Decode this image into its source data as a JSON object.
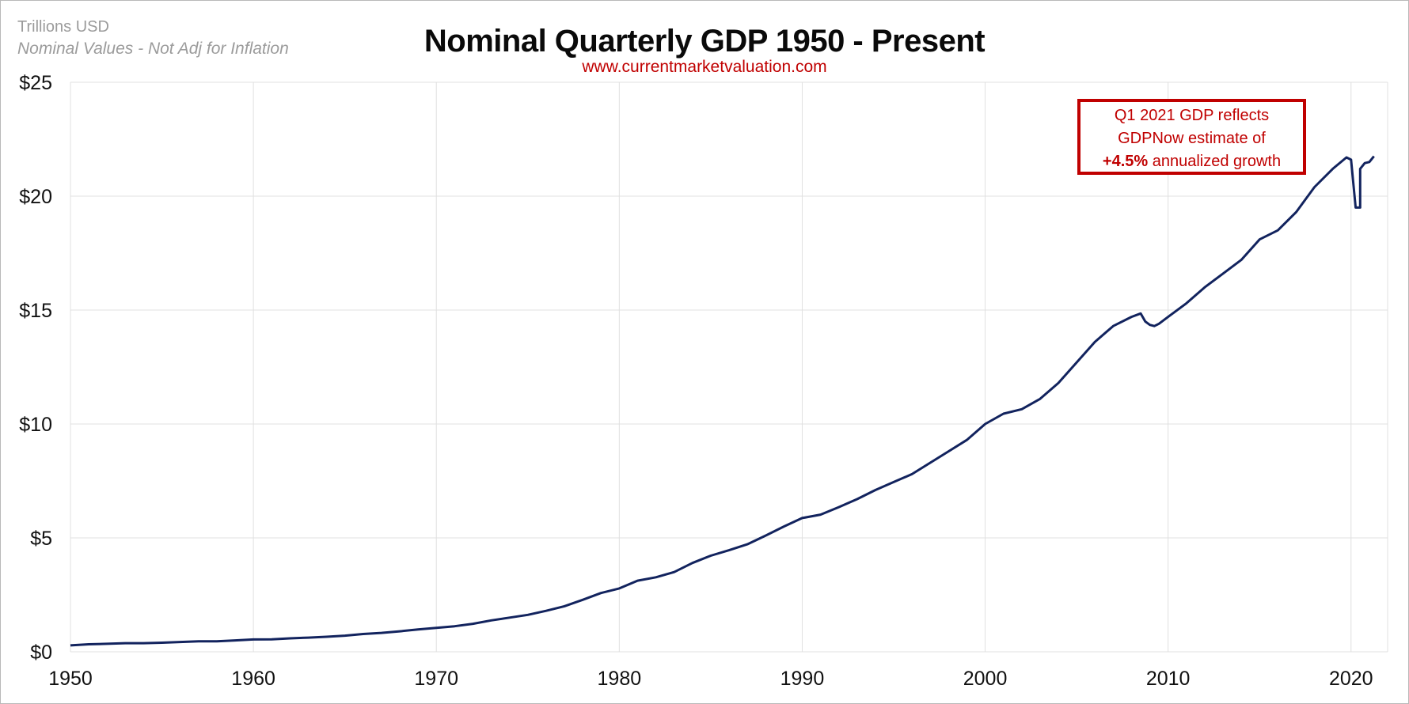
{
  "header": {
    "units_label": "Trillions USD",
    "subtitle_note": "Nominal Values - Not Adj for Inflation",
    "title": "Nominal Quarterly GDP 1950 - Present",
    "source_url": "www.currentmarketvaluation.com"
  },
  "annotation": {
    "line1": "Q1 2021 GDP reflects",
    "line2": "GDPNow estimate of",
    "line3_bold": "+4.5%",
    "line3_rest": " annualized growth"
  },
  "colors": {
    "series": "#12235e",
    "grid": "#e0e0e0",
    "annotation": "#c00000",
    "title": "#0a0a0a",
    "note": "#9b9b9b"
  },
  "chart_data": {
    "type": "line",
    "title": "Nominal Quarterly GDP 1950 - Present",
    "xlabel": "",
    "ylabel": "Trillions USD",
    "xlim": [
      1950,
      2022
    ],
    "ylim": [
      0,
      25
    ],
    "x_ticks": [
      "1950",
      "1960",
      "1970",
      "1980",
      "1990",
      "2000",
      "2010",
      "2020"
    ],
    "y_ticks": [
      "$0",
      "$5",
      "$10",
      "$15",
      "$20",
      "$25"
    ],
    "grid": true,
    "series": [
      {
        "values": [
          [
            1950.0,
            0.28
          ],
          [
            1951.0,
            0.33
          ],
          [
            1952.0,
            0.35
          ],
          [
            1953.0,
            0.38
          ],
          [
            1954.0,
            0.38
          ],
          [
            1955.0,
            0.4
          ],
          [
            1956.0,
            0.43
          ],
          [
            1957.0,
            0.46
          ],
          [
            1958.0,
            0.46
          ],
          [
            1959.0,
            0.5
          ],
          [
            1960.0,
            0.54
          ],
          [
            1961.0,
            0.55
          ],
          [
            1962.0,
            0.59
          ],
          [
            1963.0,
            0.62
          ],
          [
            1964.0,
            0.66
          ],
          [
            1965.0,
            0.71
          ],
          [
            1966.0,
            0.78
          ],
          [
            1967.0,
            0.83
          ],
          [
            1968.0,
            0.9
          ],
          [
            1969.0,
            0.98
          ],
          [
            1970.0,
            1.05
          ],
          [
            1971.0,
            1.12
          ],
          [
            1972.0,
            1.23
          ],
          [
            1973.0,
            1.38
          ],
          [
            1974.0,
            1.5
          ],
          [
            1975.0,
            1.62
          ],
          [
            1976.0,
            1.8
          ],
          [
            1977.0,
            2.0
          ],
          [
            1978.0,
            2.28
          ],
          [
            1979.0,
            2.58
          ],
          [
            1980.0,
            2.78
          ],
          [
            1981.0,
            3.12
          ],
          [
            1982.0,
            3.27
          ],
          [
            1983.0,
            3.5
          ],
          [
            1984.0,
            3.9
          ],
          [
            1985.0,
            4.22
          ],
          [
            1986.0,
            4.46
          ],
          [
            1987.0,
            4.72
          ],
          [
            1988.0,
            5.1
          ],
          [
            1989.0,
            5.5
          ],
          [
            1990.0,
            5.87
          ],
          [
            1991.0,
            6.02
          ],
          [
            1992.0,
            6.35
          ],
          [
            1993.0,
            6.7
          ],
          [
            1994.0,
            7.1
          ],
          [
            1995.0,
            7.45
          ],
          [
            1996.0,
            7.8
          ],
          [
            1997.0,
            8.3
          ],
          [
            1998.0,
            8.8
          ],
          [
            1999.0,
            9.3
          ],
          [
            2000.0,
            10.0
          ],
          [
            2001.0,
            10.45
          ],
          [
            2002.0,
            10.65
          ],
          [
            2003.0,
            11.1
          ],
          [
            2004.0,
            11.8
          ],
          [
            2005.0,
            12.7
          ],
          [
            2006.0,
            13.6
          ],
          [
            2007.0,
            14.3
          ],
          [
            2008.0,
            14.7
          ],
          [
            2008.5,
            14.85
          ],
          [
            2008.75,
            14.5
          ],
          [
            2009.0,
            14.35
          ],
          [
            2009.25,
            14.3
          ],
          [
            2009.5,
            14.4
          ],
          [
            2010.0,
            14.7
          ],
          [
            2011.0,
            15.3
          ],
          [
            2012.0,
            16.0
          ],
          [
            2013.0,
            16.6
          ],
          [
            2014.0,
            17.2
          ],
          [
            2015.0,
            18.1
          ],
          [
            2016.0,
            18.5
          ],
          [
            2017.0,
            19.3
          ],
          [
            2018.0,
            20.4
          ],
          [
            2019.0,
            21.2
          ],
          [
            2019.75,
            21.7
          ],
          [
            2020.0,
            21.6
          ],
          [
            2020.25,
            19.5
          ],
          [
            2020.5,
            19.5
          ],
          [
            2020.5,
            21.2
          ],
          [
            2020.75,
            21.45
          ],
          [
            2021.0,
            21.5
          ],
          [
            2021.25,
            21.75
          ]
        ]
      }
    ],
    "annotations": [
      "Q1 2021 GDP reflects GDPNow estimate of +4.5% annualized growth"
    ]
  }
}
